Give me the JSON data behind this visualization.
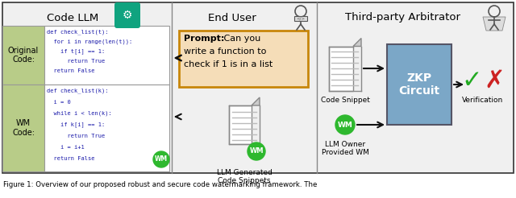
{
  "fig_width": 6.4,
  "fig_height": 2.46,
  "dpi": 100,
  "bg_color": "#ffffff",
  "outer_box_color": "#333333",
  "section_titles": [
    "Code LLM",
    "End User",
    "Third-party Arbitrator"
  ],
  "code_original": [
    "def check_list(t):",
    "  for i in range(len(t)):",
    "    if t[i] == 1:",
    "      return True",
    "  return False"
  ],
  "code_wm": [
    "def check_list(k):",
    "  i = 0",
    "  while i < len(k):",
    "    if k[i] == 1:",
    "      return True",
    "    i = i+1",
    "  return False"
  ],
  "label_original": "Original\nCode:",
  "label_wm": "WM\nCode:",
  "label_code_snippet": "Code Snippet",
  "label_llm_generated": "LLM Generated\nCode Snippets",
  "label_llm_owner": "LLM Owner\nProvided WM",
  "label_zkp": "ZKP\nCircuit",
  "label_verification": "Verification",
  "wm_color": "#2eb82e",
  "chatgpt_color": "#10a37f",
  "zkp_color": "#7ba7c7",
  "prompt_bg": "#f5ddb8",
  "prompt_border": "#c8860a",
  "original_label_bg": "#b8cc88",
  "wm_label_bg": "#b8cc88",
  "check_color": "#22aa22",
  "cross_color": "#cc2222",
  "arrow_color": "#111111",
  "code_color": "#1a1aaa",
  "caption_text": "Figure 1: Overview of our proposed robust and secure code watermarking framework. The"
}
